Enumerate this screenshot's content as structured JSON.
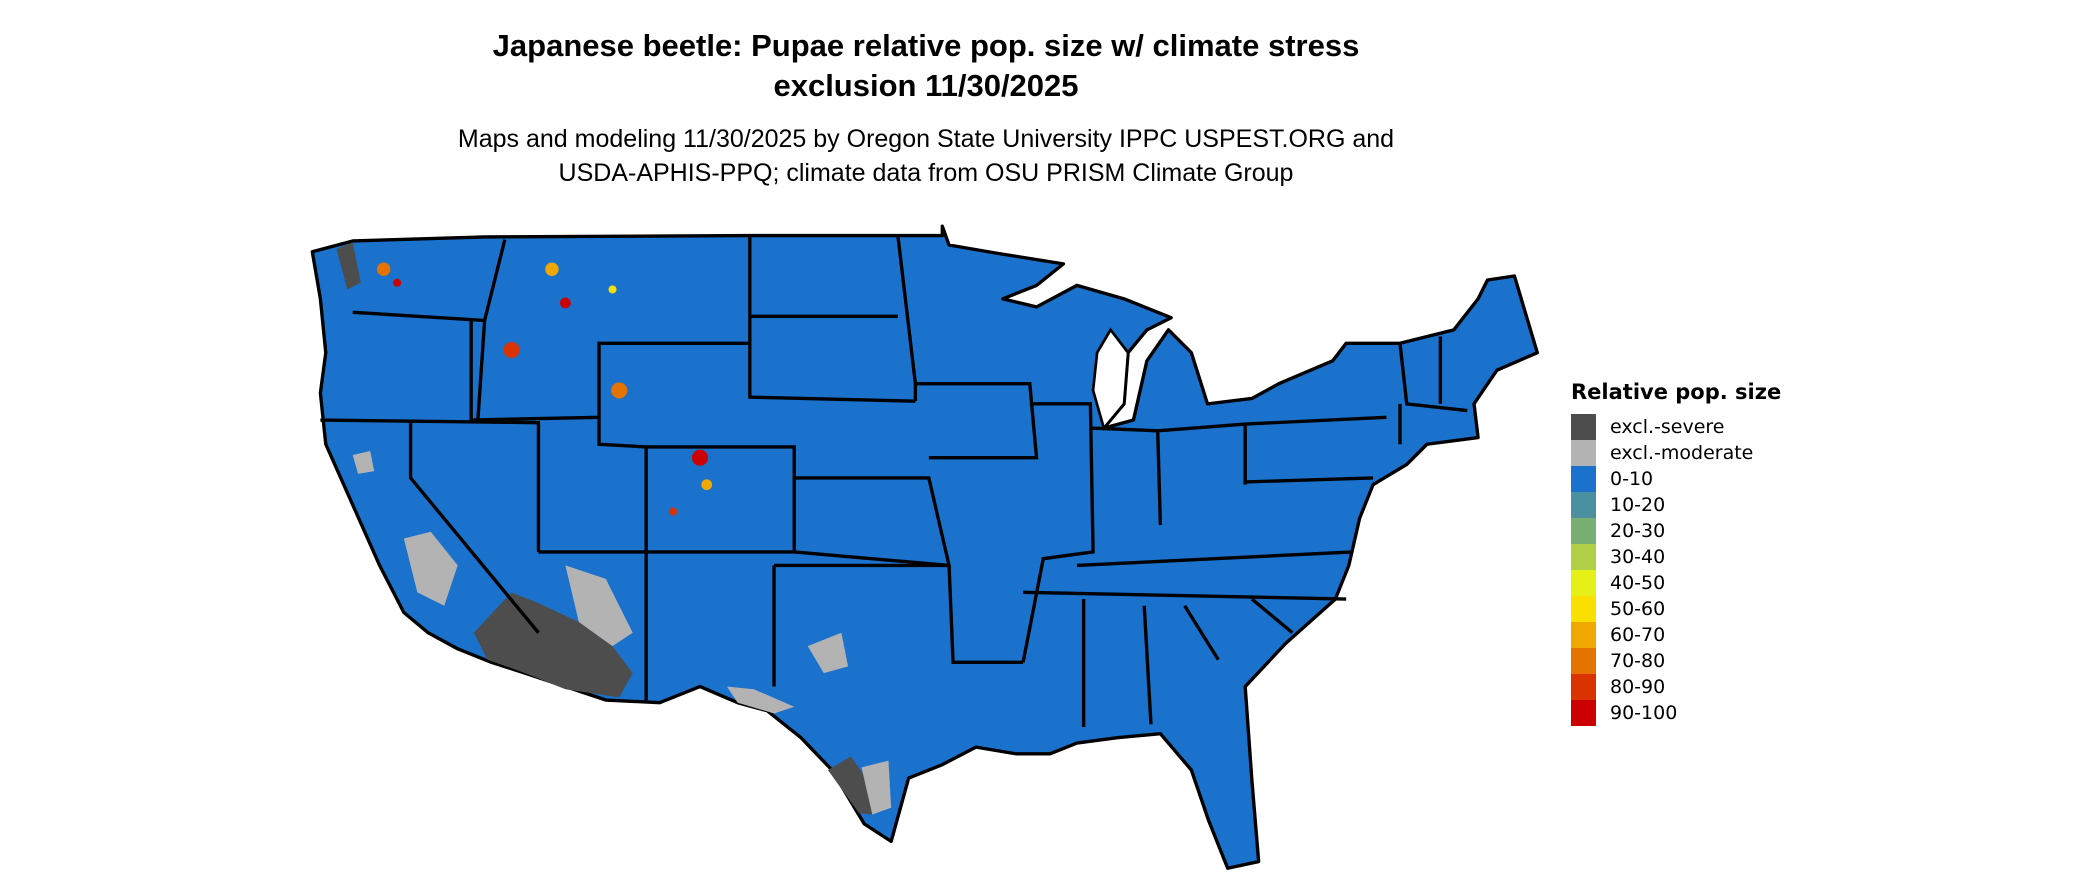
{
  "title": "Japanese beetle: Pupae relative pop. size w/ climate stress exclusion 11/30/2025",
  "title_lines": [
    "Japanese beetle: Pupae relative pop. size w/ climate stress",
    "exclusion 11/30/2025"
  ],
  "subtitle_lines": [
    "Maps and modeling 11/30/2025 by Oregon State University IPPC USPEST.ORG and",
    "USDA-APHIS-PPQ; climate data from OSU PRISM Climate Group"
  ],
  "chart_data": {
    "type": "heatmap",
    "region": "Contiguous United States",
    "dominant_class": "0-10",
    "legend": {
      "title": "Relative pop. size",
      "placement": "right",
      "items": [
        {
          "label": "excl.-severe",
          "color": "#4d4d4d"
        },
        {
          "label": "excl.-moderate",
          "color": "#b3b3b3"
        },
        {
          "label": "0-10",
          "color": "#1a72cc"
        },
        {
          "label": "10-20",
          "color": "#4a90a0"
        },
        {
          "label": "20-30",
          "color": "#7aaf74"
        },
        {
          "label": "30-40",
          "color": "#b2d047"
        },
        {
          "label": "40-50",
          "color": "#e5f016"
        },
        {
          "label": "50-60",
          "color": "#f9e000"
        },
        {
          "label": "60-70",
          "color": "#f0a800"
        },
        {
          "label": "70-80",
          "color": "#e57300"
        },
        {
          "label": "80-90",
          "color": "#d93300"
        },
        {
          "label": "90-100",
          "color": "#cc0000"
        }
      ]
    }
  }
}
